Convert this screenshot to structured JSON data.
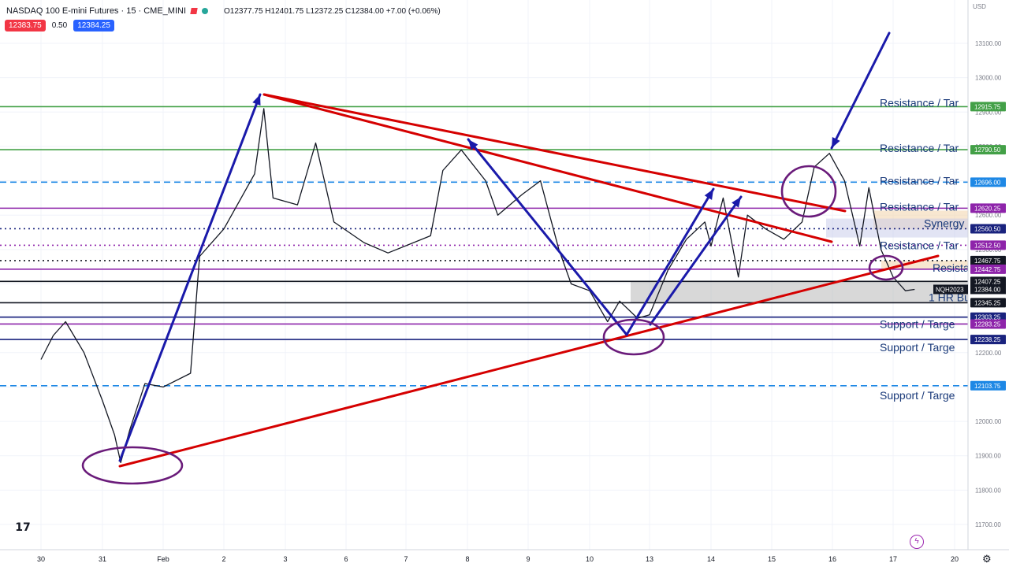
{
  "header": {
    "title": "NASDAQ 100 E-mini Futures · 15 · CME_MINI",
    "ohlc": "O12377.75 H12401.75 L12372.25 C12384.00 +7.00 (+0.06%)"
  },
  "trade": {
    "sell": "12383.75",
    "spread": "0.50",
    "buy": "12384.25"
  },
  "currency": "USD",
  "colors": {
    "green_line": "#43a047",
    "blue_dash": "#1e88e5",
    "purple_line": "#8e24aa",
    "navy_line": "#1a237e",
    "red_trend": "#d50000",
    "blue_arrow": "#1a1aaa",
    "candle": "#131722"
  },
  "chart_data": {
    "type": "line",
    "instrument": "NQH2023",
    "x_tick_labels": [
      "30",
      "31",
      "Feb",
      "2",
      "3",
      "6",
      "7",
      "8",
      "9",
      "10",
      "13",
      "14",
      "15",
      "16",
      "17",
      "20"
    ],
    "y_ticks": [
      13100,
      13000,
      12900,
      12800,
      12700,
      12600,
      12500,
      12400,
      12300,
      12200,
      12100,
      12000,
      11900,
      11800,
      11700
    ],
    "y_tick_labels": [
      "13100.00",
      "13000.00",
      "12900.00",
      "12800.00",
      "12700.00",
      "12600.00",
      "12500.00",
      "12400.00",
      "12300.00",
      "12200.00",
      "12100.00",
      "12000.00",
      "11900.00",
      "11800.00",
      "11700.00"
    ],
    "ylim": [
      11640,
      13150
    ],
    "price_path": [
      {
        "x": 30.0,
        "y": 12180
      },
      {
        "x": 30.2,
        "y": 12250
      },
      {
        "x": 30.4,
        "y": 12290
      },
      {
        "x": 30.7,
        "y": 12200
      },
      {
        "x": 31.0,
        "y": 12060
      },
      {
        "x": 31.2,
        "y": 11960
      },
      {
        "x": 31.3,
        "y": 11880
      },
      {
        "x": 31.45,
        "y": 11975
      },
      {
        "x": 31.7,
        "y": 12110
      },
      {
        "x": 32.0,
        "y": 12100
      },
      {
        "x": 32.45,
        "y": 12140
      },
      {
        "x": 32.6,
        "y": 12480
      },
      {
        "x": 33.0,
        "y": 12560
      },
      {
        "x": 33.5,
        "y": 12720
      },
      {
        "x": 33.65,
        "y": 12910
      },
      {
        "x": 33.8,
        "y": 12650
      },
      {
        "x": 34.2,
        "y": 12630
      },
      {
        "x": 34.5,
        "y": 12810
      },
      {
        "x": 34.8,
        "y": 12580
      },
      {
        "x": 35.3,
        "y": 12520
      },
      {
        "x": 35.7,
        "y": 12490
      },
      {
        "x": 36.4,
        "y": 12540
      },
      {
        "x": 36.6,
        "y": 12730
      },
      {
        "x": 36.9,
        "y": 12790
      },
      {
        "x": 37.3,
        "y": 12700
      },
      {
        "x": 37.5,
        "y": 12600
      },
      {
        "x": 37.9,
        "y": 12660
      },
      {
        "x": 38.2,
        "y": 12700
      },
      {
        "x": 38.5,
        "y": 12500
      },
      {
        "x": 38.7,
        "y": 12400
      },
      {
        "x": 39.0,
        "y": 12380
      },
      {
        "x": 39.3,
        "y": 12290
      },
      {
        "x": 39.5,
        "y": 12350
      },
      {
        "x": 39.8,
        "y": 12300
      },
      {
        "x": 40.0,
        "y": 12310
      },
      {
        "x": 40.3,
        "y": 12440
      },
      {
        "x": 40.6,
        "y": 12530
      },
      {
        "x": 40.9,
        "y": 12580
      },
      {
        "x": 41.0,
        "y": 12510
      },
      {
        "x": 41.2,
        "y": 12650
      },
      {
        "x": 41.45,
        "y": 12420
      },
      {
        "x": 41.6,
        "y": 12600
      },
      {
        "x": 41.9,
        "y": 12560
      },
      {
        "x": 42.2,
        "y": 12530
      },
      {
        "x": 42.5,
        "y": 12580
      },
      {
        "x": 42.7,
        "y": 12740
      },
      {
        "x": 42.95,
        "y": 12780
      },
      {
        "x": 43.2,
        "y": 12700
      },
      {
        "x": 43.45,
        "y": 12510
      },
      {
        "x": 43.6,
        "y": 12680
      },
      {
        "x": 43.8,
        "y": 12500
      },
      {
        "x": 44.0,
        "y": 12420
      },
      {
        "x": 44.2,
        "y": 12380
      },
      {
        "x": 44.35,
        "y": 12384
      }
    ],
    "horizontal_levels": [
      {
        "price": 12915.75,
        "label": "12915.75",
        "note": "Resistance / Target",
        "color": "#43a047",
        "style": "solid"
      },
      {
        "price": 12790.5,
        "label": "12790.50",
        "note": "Resistance / Target",
        "color": "#43a047",
        "style": "solid"
      },
      {
        "price": 12696.0,
        "label": "12696.00",
        "note": "Resistance / Target",
        "color": "#1e88e5",
        "style": "dashed"
      },
      {
        "price": 12620.25,
        "label": "12620.25",
        "note": "Resistance / Target",
        "color": "#8e24aa",
        "style": "solid"
      },
      {
        "price": 12560.5,
        "label": "12560.50",
        "note": "Synergy",
        "color": "#1a237e",
        "style": "dotted"
      },
      {
        "price": 12512.5,
        "label": "12512.50",
        "note": "Resistance / Target",
        "color": "#8e24aa",
        "style": "dotted"
      },
      {
        "price": 12467.75,
        "label": "12467.75",
        "note": "",
        "color": "#131722",
        "style": "dotted"
      },
      {
        "price": 12442.75,
        "label": "12442.75",
        "note": "Resistance",
        "color": "#8e24aa",
        "style": "solid"
      },
      {
        "price": 12407.25,
        "label": "12407.25",
        "note": "",
        "color": "#131722",
        "style": "solid"
      },
      {
        "price": 12345.25,
        "label": "12345.25",
        "note": "1 HR Bu",
        "color": "#131722",
        "style": "solid"
      },
      {
        "price": 12303.25,
        "label": "12303.25",
        "note": "",
        "color": "#1a237e",
        "style": "solid"
      },
      {
        "price": 12283.25,
        "label": "12283.25",
        "note": "Support / Target",
        "color": "#8e24aa",
        "style": "solid"
      },
      {
        "price": 12238.25,
        "label": "12238.25",
        "note": "Support / Target",
        "color": "#1a237e",
        "style": "solid"
      },
      {
        "price": 12103.75,
        "label": "12103.75",
        "note": "Support / Target",
        "color": "#1e88e5",
        "style": "dashed"
      }
    ],
    "current_price": {
      "symbol": "NQH2023",
      "value": "12384.00"
    },
    "level_notes_visible": {
      "resistance": "Resistance / Tar",
      "synergy": "Synergy",
      "resista": "Resista",
      "hr": "1 HR Bu",
      "support": "Support / Targe"
    }
  }
}
